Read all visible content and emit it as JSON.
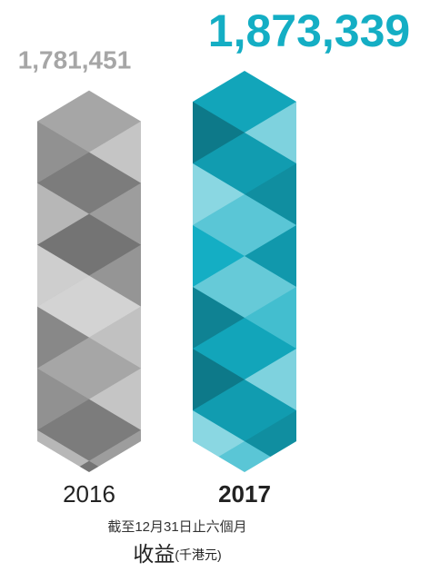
{
  "chart_data": {
    "type": "bar",
    "categories": [
      "2016",
      "2017"
    ],
    "values": [
      1781451,
      1873339
    ],
    "value_labels": [
      "1,781,451",
      "1,873,339"
    ],
    "colors": [
      "#a6a6a6",
      "#14aec4"
    ],
    "note": "截至12月31日止六個月",
    "title": "收益",
    "unit_label": "(千港元)"
  }
}
